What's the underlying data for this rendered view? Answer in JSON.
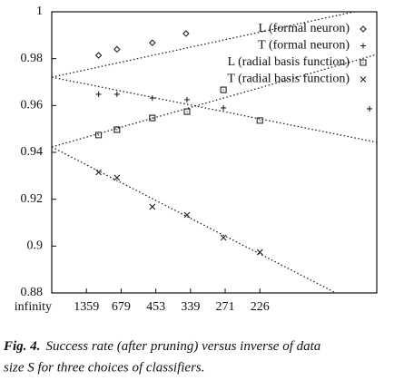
{
  "chart_data": {
    "type": "scatter",
    "xlim": [
      0,
      9.37
    ],
    "ylim": [
      0.88,
      1
    ],
    "xticks": [
      {
        "value": 0,
        "label": "infinity"
      },
      {
        "value": 1,
        "label": "1359"
      },
      {
        "value": 2,
        "label": "679"
      },
      {
        "value": 3,
        "label": "453"
      },
      {
        "value": 4,
        "label": "339"
      },
      {
        "value": 5,
        "label": "271"
      },
      {
        "value": 6,
        "label": "226"
      }
    ],
    "yticks": [
      0.88,
      0.9,
      0.92,
      0.94,
      0.96,
      0.98,
      1
    ],
    "series": [
      {
        "name": "L (formal neuron)",
        "marker": "diamond",
        "color": "#222",
        "x": [
          1.35,
          1.88,
          2.9,
          3.87
        ],
        "values": [
          0.9814,
          0.984,
          0.9868,
          0.9907
        ]
      },
      {
        "name": "T (formal neuron)",
        "marker": "plus",
        "color": "#222",
        "x": [
          1.35,
          1.88,
          2.9,
          3.9,
          4.95,
          9.16
        ],
        "values": [
          0.9648,
          0.9648,
          0.9632,
          0.9625,
          0.959,
          0.9586
        ]
      },
      {
        "name": "L (radial basis function)",
        "marker": "square",
        "color": "#222",
        "x": [
          1.35,
          1.88,
          2.9,
          3.9,
          4.95,
          6
        ],
        "values": [
          0.9474,
          0.9497,
          0.9547,
          0.9574,
          0.9667,
          0.9536
        ]
      },
      {
        "name": "T (radial basis function)",
        "marker": "cross",
        "color": "#222",
        "x": [
          1.35,
          1.88,
          2.9,
          3.9,
          4.95,
          6
        ],
        "values": [
          0.9315,
          0.9292,
          0.9168,
          0.9133,
          0.9036,
          0.8974
        ]
      }
    ],
    "fit_lines": [
      {
        "x": [
          0,
          8.72
        ],
        "y": [
          0.9721,
          1
        ]
      },
      {
        "x": [
          0,
          9.37
        ],
        "y": [
          0.9721,
          0.9443
        ]
      },
      {
        "x": [
          0,
          9.37
        ],
        "y": [
          0.9423,
          0.9818
        ]
      },
      {
        "x": [
          0,
          8.19
        ],
        "y": [
          0.9423,
          0.88
        ]
      }
    ]
  },
  "caption": {
    "label": "Fig. 4.",
    "line1": "Success rate (after pruning) versus inverse of data",
    "line2": "size S for three choices of classifiers."
  }
}
